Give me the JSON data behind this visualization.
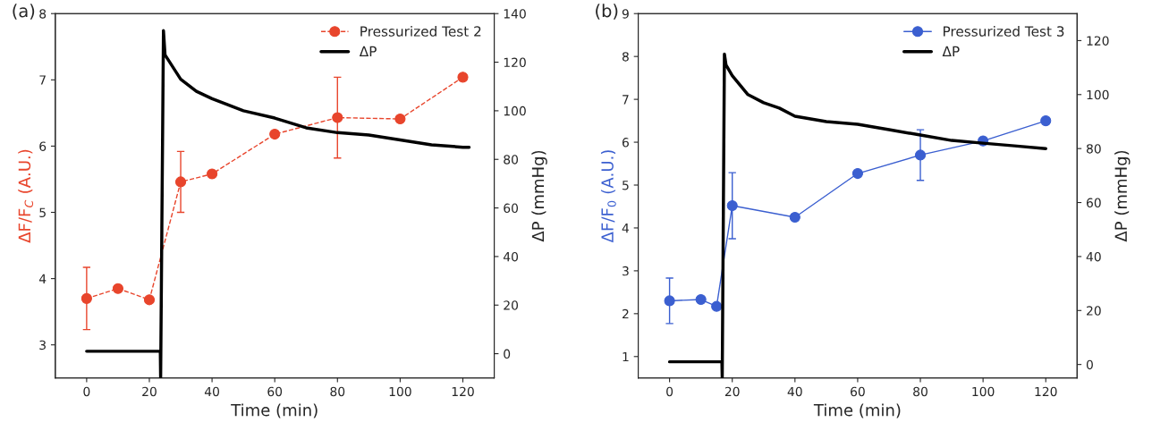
{
  "chart_data": [
    {
      "type": "line",
      "title": "(a)",
      "xlabel": "Time (min)",
      "ylabel": "ΔF/F$_{C}$ (A.U.)",
      "y2label": "ΔP (mmHg)",
      "xlim": [
        -10,
        130
      ],
      "xticks": [
        0,
        20,
        40,
        60,
        80,
        100,
        120
      ],
      "ylim": [
        2.5,
        8
      ],
      "yticks": [
        3,
        4,
        5,
        6,
        7,
        8
      ],
      "y2lim": [
        -10,
        140
      ],
      "y2ticks": [
        0,
        20,
        40,
        60,
        80,
        100,
        120,
        140
      ],
      "legend": "top right",
      "grid": false,
      "series": [
        {
          "name": "Pressurized Test 2",
          "color": "#e8452c",
          "marker": "circle",
          "line_style": "dashed",
          "x": [
            0,
            10,
            20,
            30,
            40,
            60,
            80,
            100,
            120
          ],
          "values": [
            3.7,
            3.85,
            3.68,
            5.46,
            5.58,
            6.18,
            6.43,
            6.41,
            7.04
          ],
          "errors": [
            0.47,
            null,
            null,
            0.46,
            null,
            null,
            0.61,
            null,
            null
          ]
        },
        {
          "name": "ΔP",
          "color": "#000000",
          "marker": "none",
          "line_style": "solid",
          "axis": "y2",
          "x": [
            0,
            10,
            20,
            23.5,
            23.6,
            24.5,
            25,
            30,
            35,
            40,
            50,
            60,
            70,
            80,
            90,
            100,
            110,
            120,
            122
          ],
          "values": [
            1,
            1,
            1,
            1,
            -10,
            133,
            123,
            113,
            108,
            105,
            100,
            97,
            93,
            91,
            90,
            88,
            86,
            85,
            85
          ]
        }
      ]
    },
    {
      "type": "line",
      "title": "(b)",
      "xlabel": "Time (min)",
      "ylabel": "ΔF/F$_{0}$ (A.U.)",
      "y2label": "ΔP (mmHg)",
      "xlim": [
        -10,
        130
      ],
      "xticks": [
        0,
        20,
        40,
        60,
        80,
        100,
        120
      ],
      "ylim": [
        0.5,
        9
      ],
      "yticks": [
        1,
        2,
        3,
        4,
        5,
        6,
        7,
        8,
        9
      ],
      "y2lim": [
        -5,
        130
      ],
      "y2ticks": [
        0,
        20,
        40,
        60,
        80,
        100,
        120
      ],
      "legend": "top right",
      "grid": false,
      "series": [
        {
          "name": "Pressurized Test 3",
          "color": "#3b5fd0",
          "marker": "circle",
          "line_style": "solid",
          "x": [
            0,
            10,
            15,
            20,
            40,
            60,
            80,
            100,
            120
          ],
          "values": [
            2.3,
            2.33,
            2.17,
            4.52,
            4.25,
            5.27,
            5.7,
            6.03,
            6.5
          ],
          "errors": [
            0.53,
            null,
            null,
            0.77,
            null,
            null,
            0.59,
            null,
            null
          ]
        },
        {
          "name": "ΔP",
          "color": "#000000",
          "marker": "none",
          "line_style": "solid",
          "axis": "y2",
          "x": [
            0,
            10,
            16.7,
            16.8,
            17.5,
            18,
            20,
            25,
            30,
            35,
            40,
            50,
            60,
            70,
            80,
            90,
            100,
            110,
            120
          ],
          "values": [
            1,
            1,
            1,
            -5,
            115,
            111,
            107,
            100,
            97,
            95,
            92,
            90,
            89,
            87,
            85,
            83,
            82,
            81,
            80
          ]
        }
      ]
    }
  ]
}
